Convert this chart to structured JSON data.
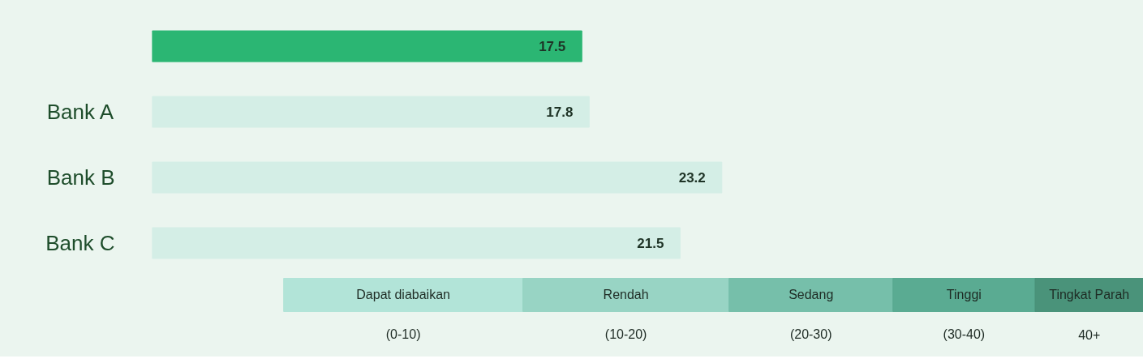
{
  "chart_data": [
    {
      "type": "bar",
      "orientation": "horizontal",
      "categories": [
        null,
        "Bank A",
        "Bank B",
        "Bank C"
      ],
      "colors": [
        "#2bb673",
        "#d4eee6",
        "#d4eee6",
        "#d4eee6"
      ],
      "values": [
        17.5,
        17.8,
        23.2,
        21.5
      ],
      "data_labels": true
    },
    {
      "type": "other",
      "categories": [
        "Dapat diabaikan",
        "Rendah",
        "Sedang",
        "Tinggi",
        "Tingkat Parah"
      ],
      "colors": [
        "#b2e4d8",
        "#98d4c4",
        "#76bfaa",
        "#5aab92",
        "#4a937a"
      ],
      "annotations": [
        "(0-10)",
        "(10-20)",
        "(20-30)",
        "(30-40)",
        "40+"
      ]
    }
  ]
}
